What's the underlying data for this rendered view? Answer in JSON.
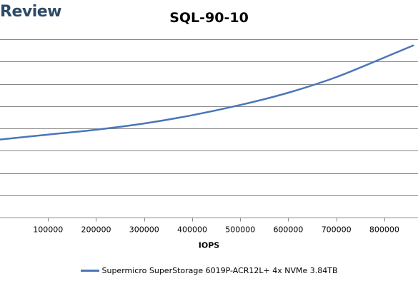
{
  "brand": {
    "text": "Review"
  },
  "chart_data": {
    "type": "line",
    "title": "SQL-90-10",
    "xlabel": "IOPS",
    "ylabel": "",
    "x_ticks": [
      100000,
      200000,
      300000,
      400000,
      500000,
      600000,
      700000,
      800000
    ],
    "x_tick_labels": [
      "100000",
      "200000",
      "300000",
      "400000",
      "500000",
      "600000",
      "700000",
      "800000"
    ],
    "xlim": [
      0,
      870000
    ],
    "ylim": [
      0,
      8
    ],
    "gridlines": "horizontal",
    "legend_placement": "bottom",
    "series": [
      {
        "name": "Supermicro SuperStorage 6019P-ACR12L+ 4x NVMe 3.84TB",
        "color": "#4a76b8",
        "points": [
          [
            100000,
            3.72
          ],
          [
            200000,
            3.94
          ],
          [
            300000,
            4.22
          ],
          [
            400000,
            4.59
          ],
          [
            500000,
            5.05
          ],
          [
            600000,
            5.6
          ],
          [
            700000,
            6.3
          ],
          [
            800000,
            7.18
          ],
          [
            860000,
            7.72
          ]
        ]
      }
    ]
  }
}
